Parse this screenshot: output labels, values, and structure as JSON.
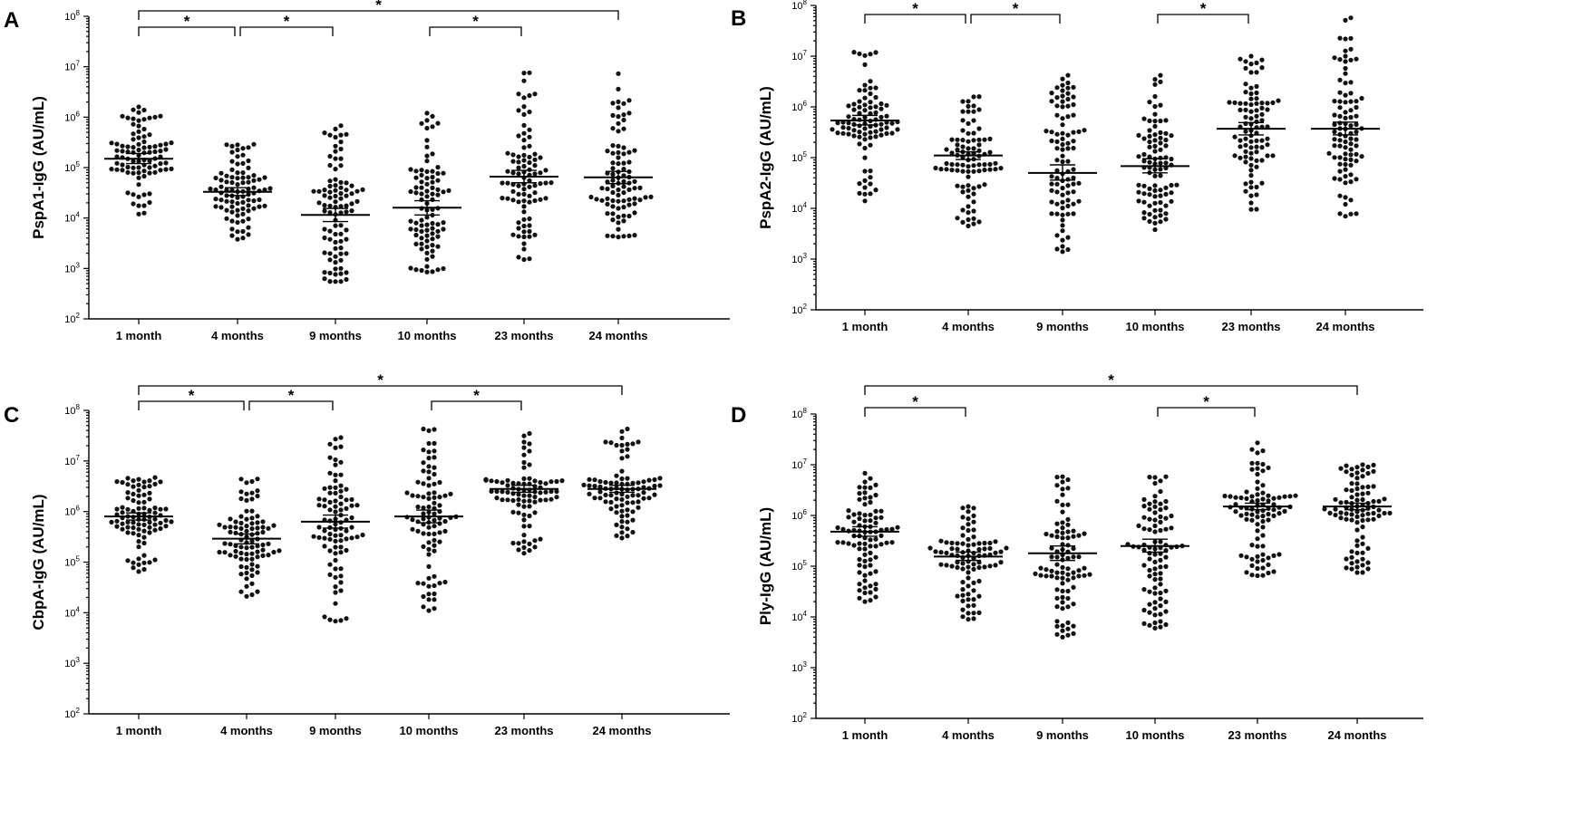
{
  "chart_data": [
    {
      "type": "scatter",
      "panel": "A",
      "ylabel": "PspA1-IgG (AU/mL)",
      "yscale": "log",
      "ylim": [
        100,
        100000000
      ],
      "ytick_exponents": [
        2,
        3,
        4,
        5,
        6,
        7,
        8
      ],
      "ytick_base": "10",
      "categories": [
        "1 month",
        "4 months",
        "9 months",
        "10 months",
        "23 months",
        "24 months"
      ],
      "groups": [
        {
          "name": "1 month",
          "mean": 150000,
          "ci": [
            120000,
            190000
          ],
          "min": 12000,
          "max": 1600000,
          "q25": 70000,
          "q75": 320000
        },
        {
          "name": "4 months",
          "mean": 33000,
          "ci": [
            28000,
            40000
          ],
          "min": 3800,
          "max": 290000,
          "q25": 15000,
          "q75": 65000
        },
        {
          "name": "9 months",
          "mean": 11500,
          "ci": [
            8500,
            15500
          ],
          "min": 550,
          "max": 680000,
          "q25": 3500,
          "q75": 45000
        },
        {
          "name": "10 months",
          "mean": 16000,
          "ci": [
            11500,
            22000
          ],
          "min": 850,
          "max": 1200000,
          "q25": 4000,
          "q75": 70000
        },
        {
          "name": "23 months",
          "mean": 66000,
          "ci": [
            50000,
            88000
          ],
          "min": 1500,
          "max": 7600000,
          "q25": 20000,
          "q75": 220000
        },
        {
          "name": "24 months",
          "mean": 64000,
          "ci": [
            48000,
            84000
          ],
          "min": 4200,
          "max": 7300000,
          "q25": 18000,
          "q75": 210000
        }
      ],
      "significance": [
        {
          "from": 0,
          "to": 1,
          "label": "*",
          "level": 1
        },
        {
          "from": 1,
          "to": 2,
          "label": "*",
          "level": 1
        },
        {
          "from": 3,
          "to": 4,
          "label": "*",
          "level": 1
        },
        {
          "from": 0,
          "to": 5,
          "label": "*",
          "level": 2
        }
      ]
    },
    {
      "type": "scatter",
      "panel": "B",
      "ylabel": "PspA2-IgG (AU/mL)",
      "yscale": "log",
      "ylim": [
        100,
        100000000
      ],
      "ytick_exponents": [
        2,
        3,
        4,
        5,
        6,
        7,
        8
      ],
      "ytick_base": "10",
      "categories": [
        "1 month",
        "4 months",
        "9 months",
        "10 months",
        "23 months",
        "24 months"
      ],
      "groups": [
        {
          "name": "1 month",
          "mean": 540000,
          "ci": [
            440000,
            680000
          ],
          "min": 14000,
          "max": 12000000,
          "q25": 250000,
          "q75": 1300000
        },
        {
          "name": "4 months",
          "mean": 110000,
          "ci": [
            92000,
            130000
          ],
          "min": 4500,
          "max": 1600000,
          "q25": 50000,
          "q75": 250000
        },
        {
          "name": "9 months",
          "mean": 50000,
          "ci": [
            36000,
            72000
          ],
          "min": 1400,
          "max": 4200000,
          "q25": 12000,
          "q75": 400000
        },
        {
          "name": "10 months",
          "mean": 68000,
          "ci": [
            50000,
            95000
          ],
          "min": 3800,
          "max": 4200000,
          "q25": 15000,
          "q75": 450000
        },
        {
          "name": "23 months",
          "mean": 370000,
          "ci": [
            280000,
            490000
          ],
          "min": 9500,
          "max": 10000000,
          "q25": 90000,
          "q75": 1500000
        },
        {
          "name": "24 months",
          "mean": 370000,
          "ci": [
            280000,
            500000
          ],
          "min": 7000,
          "max": 57000000,
          "q25": 90000,
          "q75": 1400000
        }
      ],
      "significance": [
        {
          "from": 0,
          "to": 1,
          "label": "*",
          "level": 1
        },
        {
          "from": 1,
          "to": 2,
          "label": "*",
          "level": 1
        },
        {
          "from": 3,
          "to": 4,
          "label": "*",
          "level": 1
        }
      ]
    },
    {
      "type": "scatter",
      "panel": "C",
      "ylabel": "CbpA-IgG (AU/mL)",
      "yscale": "log",
      "ylim": [
        100,
        100000000
      ],
      "ytick_exponents": [
        2,
        3,
        4,
        5,
        6,
        7,
        8
      ],
      "ytick_base": "10",
      "categories": [
        "1 month",
        "4 months",
        "9 months",
        "10 months",
        "23 months",
        "24 months"
      ],
      "groups": [
        {
          "name": "1 month",
          "mean": 800000,
          "ci": [
            680000,
            940000
          ],
          "min": 65000,
          "max": 4700000,
          "q25": 400000,
          "q75": 1700000
        },
        {
          "name": "4 months",
          "mean": 290000,
          "ci": [
            230000,
            360000
          ],
          "min": 21000,
          "max": 4400000,
          "q25": 110000,
          "q75": 750000
        },
        {
          "name": "9 months",
          "mean": 630000,
          "ci": [
            470000,
            850000
          ],
          "min": 6800,
          "max": 29000000,
          "q25": 150000,
          "q75": 2500000
        },
        {
          "name": "10 months",
          "mean": 800000,
          "ci": [
            600000,
            1070000
          ],
          "min": 11000,
          "max": 43000000,
          "q25": 200000,
          "q75": 2500000
        },
        {
          "name": "23 months",
          "mean": 2800000,
          "ci": [
            2400000,
            3300000
          ],
          "min": 150000,
          "max": 35000000,
          "q25": 1600000,
          "q75": 4600000
        },
        {
          "name": "24 months",
          "mean": 2800000,
          "ci": [
            2400000,
            3300000
          ],
          "min": 300000,
          "max": 43000000,
          "q25": 1500000,
          "q75": 4700000
        }
      ],
      "significance": [
        {
          "from": 0,
          "to": 1,
          "label": "*",
          "level": 1
        },
        {
          "from": 1,
          "to": 2,
          "label": "*",
          "level": 1
        },
        {
          "from": 3,
          "to": 4,
          "label": "*",
          "level": 1
        },
        {
          "from": 0,
          "to": 5,
          "label": "*",
          "level": 2
        }
      ]
    },
    {
      "type": "scatter",
      "panel": "D",
      "ylabel": "Ply-IgG (AU/mL)",
      "yscale": "log",
      "ylim": [
        100,
        100000000
      ],
      "ytick_exponents": [
        2,
        3,
        4,
        5,
        6,
        7,
        8
      ],
      "ytick_base": "10",
      "categories": [
        "1 month",
        "4 months",
        "9 months",
        "10 months",
        "23 months",
        "24 months"
      ],
      "groups": [
        {
          "name": "1 month",
          "mean": 480000,
          "ci": [
            390000,
            600000
          ],
          "min": 20000,
          "max": 6800000,
          "q25": 200000,
          "q75": 1200000
        },
        {
          "name": "4 months",
          "mean": 155000,
          "ci": [
            130000,
            190000
          ],
          "min": 9000,
          "max": 1500000,
          "q25": 70000,
          "q75": 350000
        },
        {
          "name": "9 months",
          "mean": 180000,
          "ci": [
            130000,
            250000
          ],
          "min": 4000,
          "max": 5800000,
          "q25": 50000,
          "q75": 800000
        },
        {
          "name": "10 months",
          "mean": 250000,
          "ci": [
            190000,
            340000
          ],
          "min": 6000,
          "max": 5800000,
          "q25": 60000,
          "q75": 1000000
        },
        {
          "name": "23 months",
          "mean": 1500000,
          "ci": [
            1300000,
            1750000
          ],
          "min": 65000,
          "max": 27000000,
          "q25": 800000,
          "q75": 2600000
        },
        {
          "name": "24 months",
          "mean": 1500000,
          "ci": [
            1300000,
            1750000
          ],
          "min": 75000,
          "max": 10000000,
          "q25": 800000,
          "q75": 2700000
        }
      ],
      "significance": [
        {
          "from": 0,
          "to": 1,
          "label": "*",
          "level": 1
        },
        {
          "from": 3,
          "to": 4,
          "label": "*",
          "level": 1
        },
        {
          "from": 0,
          "to": 5,
          "label": "*",
          "level": 2
        }
      ]
    }
  ]
}
